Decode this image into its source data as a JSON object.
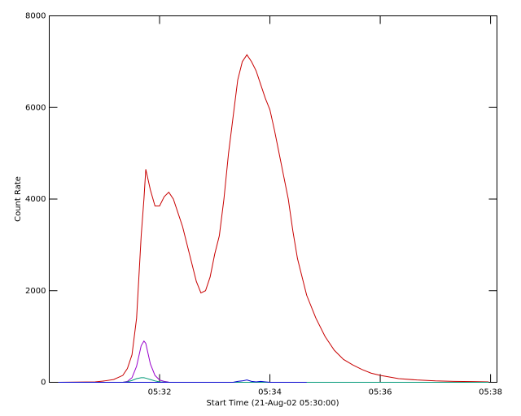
{
  "chart_data": {
    "type": "line",
    "ylabel": "Count Rate",
    "xlabel": "Start Time (21-Aug-02 05:30:00)",
    "x": [
      10,
      30,
      50,
      60,
      70,
      80,
      85,
      90,
      95,
      100,
      103,
      105,
      110,
      115,
      120,
      125,
      130,
      135,
      140,
      145,
      150,
      155,
      160,
      165,
      170,
      175,
      180,
      185,
      190,
      195,
      200,
      205,
      210,
      215,
      220,
      225,
      230,
      235,
      240,
      245,
      250,
      255,
      260,
      265,
      270,
      275,
      280,
      290,
      300,
      310,
      320,
      330,
      340,
      350,
      360,
      380,
      400,
      420,
      440,
      460,
      478
    ],
    "series": [
      {
        "color": "#c80000",
        "values": [
          0,
          5,
          10,
          30,
          60,
          150,
          300,
          600,
          1400,
          3200,
          4000,
          4650,
          4200,
          3850,
          3850,
          4050,
          4150,
          4000,
          3700,
          3400,
          3000,
          2600,
          2200,
          1950,
          2000,
          2300,
          2800,
          3200,
          4000,
          5000,
          5800,
          6600,
          7000,
          7150,
          7000,
          6800,
          6500,
          6200,
          5950,
          5500,
          5000,
          4500,
          4000,
          3300,
          2700,
          2300,
          1900,
          1400,
          1000,
          700,
          500,
          380,
          280,
          200,
          150,
          80,
          50,
          30,
          20,
          15,
          10
        ]
      },
      {
        "color": "#9900cc",
        "values": [
          0,
          0,
          0,
          0,
          0,
          0,
          20,
          100,
          350,
          800,
          900,
          850,
          400,
          150,
          50,
          20,
          5,
          null,
          null,
          null,
          null,
          null,
          null,
          null,
          null,
          null,
          null,
          null,
          null,
          null,
          null,
          null,
          null,
          null,
          null,
          null,
          null,
          null,
          null,
          null,
          null,
          null,
          null,
          null,
          null,
          null,
          null,
          null,
          null,
          null,
          null,
          null,
          null,
          null,
          null,
          null,
          null,
          null,
          null,
          null,
          null
        ]
      },
      {
        "color": "#009977",
        "values": [
          0,
          0,
          0,
          0,
          0,
          0,
          10,
          40,
          80,
          100,
          100,
          90,
          60,
          30,
          10,
          5,
          0,
          0,
          0,
          0,
          0,
          0,
          0,
          0,
          0,
          0,
          0,
          0,
          0,
          0,
          0,
          0,
          0,
          0,
          0,
          0,
          0,
          0,
          0,
          0,
          0,
          0,
          0,
          0,
          0,
          0,
          0,
          0,
          0,
          0,
          0,
          0,
          0,
          0,
          0,
          0,
          0,
          0,
          0,
          0,
          0
        ]
      },
      {
        "color": "#0000cc",
        "values": [
          0,
          0,
          0,
          0,
          0,
          0,
          0,
          0,
          0,
          0,
          0,
          0,
          0,
          0,
          0,
          0,
          0,
          0,
          0,
          0,
          0,
          0,
          0,
          0,
          0,
          0,
          0,
          0,
          0,
          0,
          0,
          20,
          30,
          50,
          20,
          10,
          20,
          10,
          0,
          0,
          0,
          0,
          0,
          0,
          0,
          0,
          0,
          null,
          null,
          null,
          null,
          null,
          null,
          null,
          null,
          null,
          null,
          null,
          null,
          null,
          null
        ]
      }
    ],
    "xlim": [
      0,
      487
    ],
    "xticks": [
      {
        "value": 120,
        "label": "05:32"
      },
      {
        "value": 240,
        "label": "05:34"
      },
      {
        "value": 360,
        "label": "05:36"
      },
      {
        "value": 480,
        "label": "05:38"
      }
    ],
    "ylim": [
      0,
      8000
    ],
    "yticks": [
      0,
      2000,
      4000,
      6000,
      8000
    ]
  }
}
